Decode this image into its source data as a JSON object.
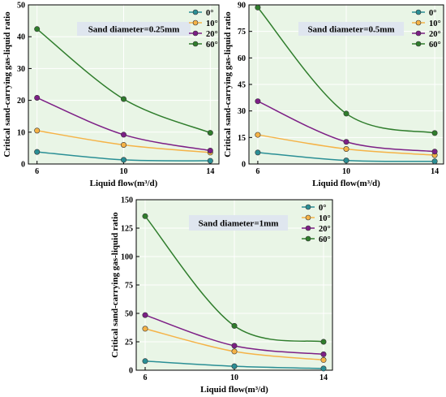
{
  "colors": {
    "plot_bg": "#e9f5e6",
    "grid": "#ffffff",
    "annotation_bg": "#dfe6ef",
    "series": [
      "#2a8f95",
      "#f5b347",
      "#7d1f86",
      "#2f7d2c"
    ]
  },
  "chart_data": [
    {
      "type": "line",
      "annotation": "Sand diameter=0.25mm",
      "xlabel": "Liquid flow(m³/d)",
      "ylabel": "Critical sand-carrying gas-liquid ratio",
      "x": [
        6,
        10,
        14
      ],
      "xticks": [
        "6",
        "10",
        "14"
      ],
      "ylim": [
        0,
        50
      ],
      "yticks": [
        0,
        10,
        20,
        30,
        40,
        50
      ],
      "legend_position": "top-right",
      "grid": true,
      "series": [
        {
          "name": "0°",
          "values": [
            3.8,
            1.3,
            1.0
          ]
        },
        {
          "name": "10°",
          "values": [
            10.5,
            6.0,
            3.6
          ]
        },
        {
          "name": "20°",
          "values": [
            20.8,
            9.2,
            4.2
          ]
        },
        {
          "name": "60°",
          "values": [
            42.4,
            20.4,
            9.8
          ]
        }
      ]
    },
    {
      "type": "line",
      "annotation": "Sand diameter=0.5mm",
      "xlabel": "Liquid flow(m³/d)",
      "ylabel": "Critical sand-carrying gas-liquid ratio",
      "x": [
        6,
        10,
        14
      ],
      "xticks": [
        "6",
        "10",
        "14"
      ],
      "ylim": [
        0,
        90
      ],
      "yticks": [
        0,
        15,
        30,
        45,
        60,
        75,
        90
      ],
      "legend_position": "top-right",
      "grid": true,
      "series": [
        {
          "name": "0°",
          "values": [
            6.5,
            2.0,
            1.5
          ]
        },
        {
          "name": "10°",
          "values": [
            16.5,
            8.5,
            5.0
          ]
        },
        {
          "name": "20°",
          "values": [
            35.5,
            12.5,
            7.0
          ]
        },
        {
          "name": "60°",
          "values": [
            88.5,
            28.5,
            17.5
          ]
        }
      ]
    },
    {
      "type": "line",
      "annotation": "Sand diameter=1mm",
      "xlabel": "Liquid flow(m³/d)",
      "ylabel": "Critical sand-carrying gas-liquid ratio",
      "x": [
        6,
        10,
        14
      ],
      "xticks": [
        "6",
        "10",
        "14"
      ],
      "ylim": [
        0,
        150
      ],
      "yticks": [
        0,
        25,
        50,
        75,
        100,
        125,
        150
      ],
      "legend_position": "top-right",
      "grid": true,
      "series": [
        {
          "name": "0°",
          "values": [
            8.0,
            3.5,
            1.5
          ]
        },
        {
          "name": "10°",
          "values": [
            36.5,
            16.5,
            9.0
          ]
        },
        {
          "name": "20°",
          "values": [
            48.5,
            21.5,
            14.0
          ]
        },
        {
          "name": "60°",
          "values": [
            135.5,
            39.0,
            25.0
          ]
        }
      ]
    }
  ]
}
